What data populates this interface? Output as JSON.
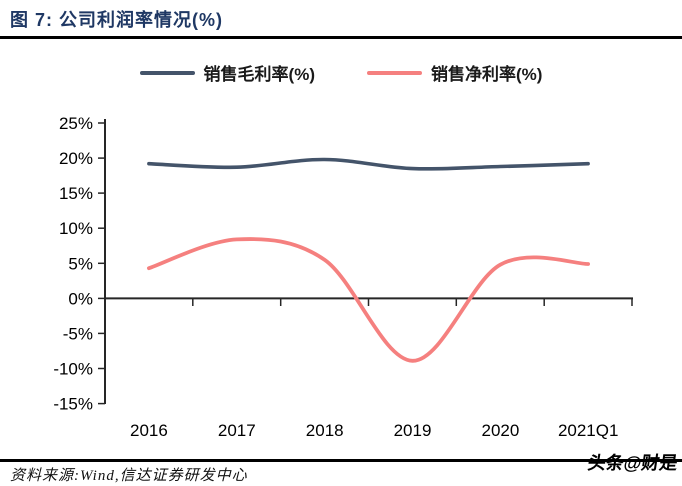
{
  "header": {
    "title": "图 7: 公司利润率情况(%)"
  },
  "colors": {
    "title": "#1F3864",
    "axis": "#262626",
    "rule": "#000000"
  },
  "chart_data": {
    "type": "line",
    "smooth": true,
    "grid": false,
    "legend_position": "top",
    "categories": [
      "2016",
      "2017",
      "2018",
      "2019",
      "2020",
      "2021Q1"
    ],
    "series": [
      {
        "name": "销售毛利率(%)",
        "color": "#44546A",
        "values": [
          19.2,
          18.7,
          19.8,
          18.5,
          18.8,
          19.2
        ]
      },
      {
        "name": "销售净利率(%)",
        "color": "#F5807F",
        "values": [
          4.3,
          8.4,
          5.5,
          -8.9,
          4.8,
          4.9
        ]
      }
    ],
    "ylabel": "",
    "xlabel": "",
    "ylim": [
      -15,
      25
    ],
    "ytick_step": 5,
    "ytick_labels": [
      "25%",
      "20%",
      "15%",
      "10%",
      "5%",
      "0%",
      "-5%",
      "-10%",
      "-15%"
    ]
  },
  "footer": {
    "source": "资料来源:Wind,信达证券研发中心"
  },
  "watermark": "头条@财是"
}
